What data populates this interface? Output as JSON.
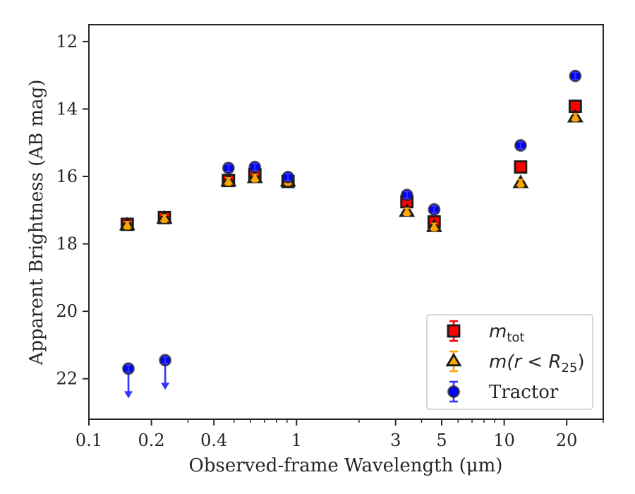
{
  "chart_data": {
    "type": "scatter",
    "xlabel": "Observed-frame Wavelength (μm)",
    "ylabel": "Apparent Brightness (AB mag)",
    "xscale": "log",
    "xlim": [
      0.1,
      30
    ],
    "ylim": [
      23.2,
      11.5
    ],
    "y_inverted": true,
    "x_ticks": [
      0.1,
      0.2,
      0.4,
      1,
      3,
      5,
      10,
      20
    ],
    "x_tick_labels": [
      "0.1",
      "0.2",
      "0.4",
      "1",
      "3",
      "5",
      "10",
      "20"
    ],
    "y_ticks": [
      12,
      14,
      16,
      18,
      20,
      22
    ],
    "y_tick_labels": [
      "12",
      "14",
      "16",
      "18",
      "20",
      "22"
    ],
    "grid": false,
    "legend_position": "bottom-right",
    "series": [
      {
        "name": "m_tot",
        "legend_main": "m",
        "legend_sub": "tot",
        "marker": "square",
        "color": "#ff0000",
        "edge_color": "#1a1a1a",
        "errorbar_color": "#ff0000",
        "x": [
          0.153,
          0.231,
          0.47,
          0.63,
          0.91,
          3.4,
          4.6,
          12.0,
          22.0
        ],
        "y": [
          17.42,
          17.22,
          16.12,
          15.95,
          16.15,
          16.75,
          17.35,
          15.72,
          13.92
        ]
      },
      {
        "name": "m(r<R25)",
        "legend_main": "m(r < R",
        "legend_sub": "25",
        "legend_end": ")",
        "marker": "triangle",
        "color": "#ffa500",
        "edge_color": "#1a1a1a",
        "errorbar_color": "#ffa500",
        "x": [
          0.153,
          0.231,
          0.47,
          0.63,
          0.91,
          3.4,
          4.6,
          12.0,
          22.0
        ],
        "y": [
          17.45,
          17.25,
          16.15,
          16.05,
          16.15,
          17.05,
          17.5,
          16.2,
          14.25
        ]
      },
      {
        "name": "Tractor",
        "legend_main": "Tractor",
        "marker": "circle",
        "color": "#0000ff",
        "edge_color": "#262626",
        "errorbar_color": "#3333ff",
        "x": [
          0.155,
          0.233,
          0.47,
          0.63,
          0.91,
          3.4,
          4.6,
          12.0,
          22.0
        ],
        "y": [
          21.7,
          21.45,
          15.75,
          15.72,
          16.02,
          16.55,
          16.98,
          15.08,
          13.02
        ],
        "upper_limits": [
          true,
          true,
          false,
          false,
          false,
          false,
          false,
          false,
          false
        ]
      }
    ]
  }
}
